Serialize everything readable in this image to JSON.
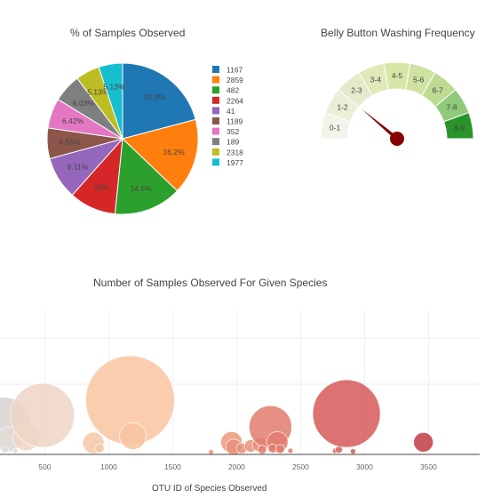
{
  "chart_data": [
    {
      "type": "pie",
      "title": "% of Samples Observed",
      "slices": [
        {
          "label": "1167",
          "percent": 20.9,
          "value_label": "20.9%",
          "color": "#1f77b4"
        },
        {
          "label": "2859",
          "percent": 16.2,
          "value_label": "16.2%",
          "color": "#ff7f0e"
        },
        {
          "label": "482",
          "percent": 14.5,
          "value_label": "14.5%",
          "color": "#2ca02c"
        },
        {
          "label": "2264",
          "percent": 10.0,
          "value_label": "10%",
          "color": "#d62728"
        },
        {
          "label": "41",
          "percent": 9.11,
          "value_label": "9.11%",
          "color": "#9467bd"
        },
        {
          "label": "1189",
          "percent": 6.55,
          "value_label": "6.55%",
          "color": "#8c564b"
        },
        {
          "label": "352",
          "percent": 6.42,
          "value_label": "6.42%",
          "color": "#e377c2"
        },
        {
          "label": "189",
          "percent": 6.03,
          "value_label": "6.03%",
          "color": "#7f7f7f"
        },
        {
          "label": "2318",
          "percent": 5.13,
          "value_label": "5.13%",
          "color": "#bcbd22"
        },
        {
          "label": "1977",
          "percent": 5.13,
          "value_label": "5.13%",
          "color": "#17becf"
        }
      ],
      "legend": "right"
    },
    {
      "type": "gauge",
      "title": "Belly Button Washing Frequency",
      "segments": [
        {
          "label": "0-1",
          "color": "#f4f3ea"
        },
        {
          "label": "1-2",
          "color": "#eceed8"
        },
        {
          "label": "2-3",
          "color": "#e4eacb"
        },
        {
          "label": "3-4",
          "color": "#e0e9b8"
        },
        {
          "label": "4-5",
          "color": "#d8e7a7"
        },
        {
          "label": "5-6",
          "color": "#cfe2a1"
        },
        {
          "label": "6-7",
          "color": "#bddb93"
        },
        {
          "label": "7-8",
          "color": "#8fca7a"
        },
        {
          "label": "8-9",
          "color": "#28942a"
        }
      ],
      "value": 2,
      "max": 9,
      "needle_color": "#850000"
    },
    {
      "type": "scatter",
      "title": "Number of Samples Observed For Given Species",
      "xlabel": "OTU ID of Species Observed",
      "xticks": [
        500,
        1000,
        1500,
        2000,
        2500,
        3000,
        3500
      ],
      "xlim": [
        150,
        3900
      ],
      "ylim": [
        0,
        235
      ],
      "points": [
        {
          "x": 180,
          "y": 50,
          "size": 30,
          "color": "#d8d2d0"
        },
        {
          "x": 220,
          "y": 25,
          "size": 14,
          "color": "#e2dcd8"
        },
        {
          "x": 355,
          "y": 28,
          "size": 15,
          "color": "#efd3c4"
        },
        {
          "x": 482,
          "y": 64,
          "size": 36,
          "color": "#eed5c5"
        },
        {
          "x": 190,
          "y": 8,
          "size": 4,
          "color": "#e0dcda"
        },
        {
          "x": 270,
          "y": 6,
          "size": 3,
          "color": "#e0dcda"
        },
        {
          "x": 880,
          "y": 19,
          "size": 12,
          "color": "#f6c8a6"
        },
        {
          "x": 930,
          "y": 10,
          "size": 5,
          "color": "#f6c8a6"
        },
        {
          "x": 1167,
          "y": 89,
          "size": 50,
          "color": "#f8c4a0"
        },
        {
          "x": 1189,
          "y": 30,
          "size": 15,
          "color": "#f8c4a0"
        },
        {
          "x": 1800,
          "y": 4,
          "size": 3,
          "color": "#e8967a"
        },
        {
          "x": 1960,
          "y": 20,
          "size": 12,
          "color": "#ea9a7c"
        },
        {
          "x": 1977,
          "y": 12,
          "size": 9,
          "color": "#e8927a"
        },
        {
          "x": 2040,
          "y": 10,
          "size": 6,
          "color": "#e8927a"
        },
        {
          "x": 2110,
          "y": 14,
          "size": 7,
          "color": "#e8927a"
        },
        {
          "x": 2180,
          "y": 16,
          "size": 8,
          "color": "#e58a75"
        },
        {
          "x": 2264,
          "y": 45,
          "size": 24,
          "color": "#e27d6e"
        },
        {
          "x": 2318,
          "y": 20,
          "size": 12,
          "color": "#e27d6e"
        },
        {
          "x": 2200,
          "y": 8,
          "size": 5,
          "color": "#e27d6e"
        },
        {
          "x": 2280,
          "y": 10,
          "size": 5,
          "color": "#e27d6e"
        },
        {
          "x": 2340,
          "y": 9,
          "size": 5,
          "color": "#e27d6e"
        },
        {
          "x": 2420,
          "y": 6,
          "size": 3,
          "color": "#e27d6e"
        },
        {
          "x": 2770,
          "y": 6,
          "size": 3,
          "color": "#d8645f"
        },
        {
          "x": 2800,
          "y": 8,
          "size": 4,
          "color": "#d8645f"
        },
        {
          "x": 2859,
          "y": 67,
          "size": 38,
          "color": "#d65b59"
        },
        {
          "x": 2910,
          "y": 5,
          "size": 3,
          "color": "#d65b59"
        },
        {
          "x": 3460,
          "y": 20,
          "size": 11,
          "color": "#c13d44"
        }
      ]
    }
  ]
}
